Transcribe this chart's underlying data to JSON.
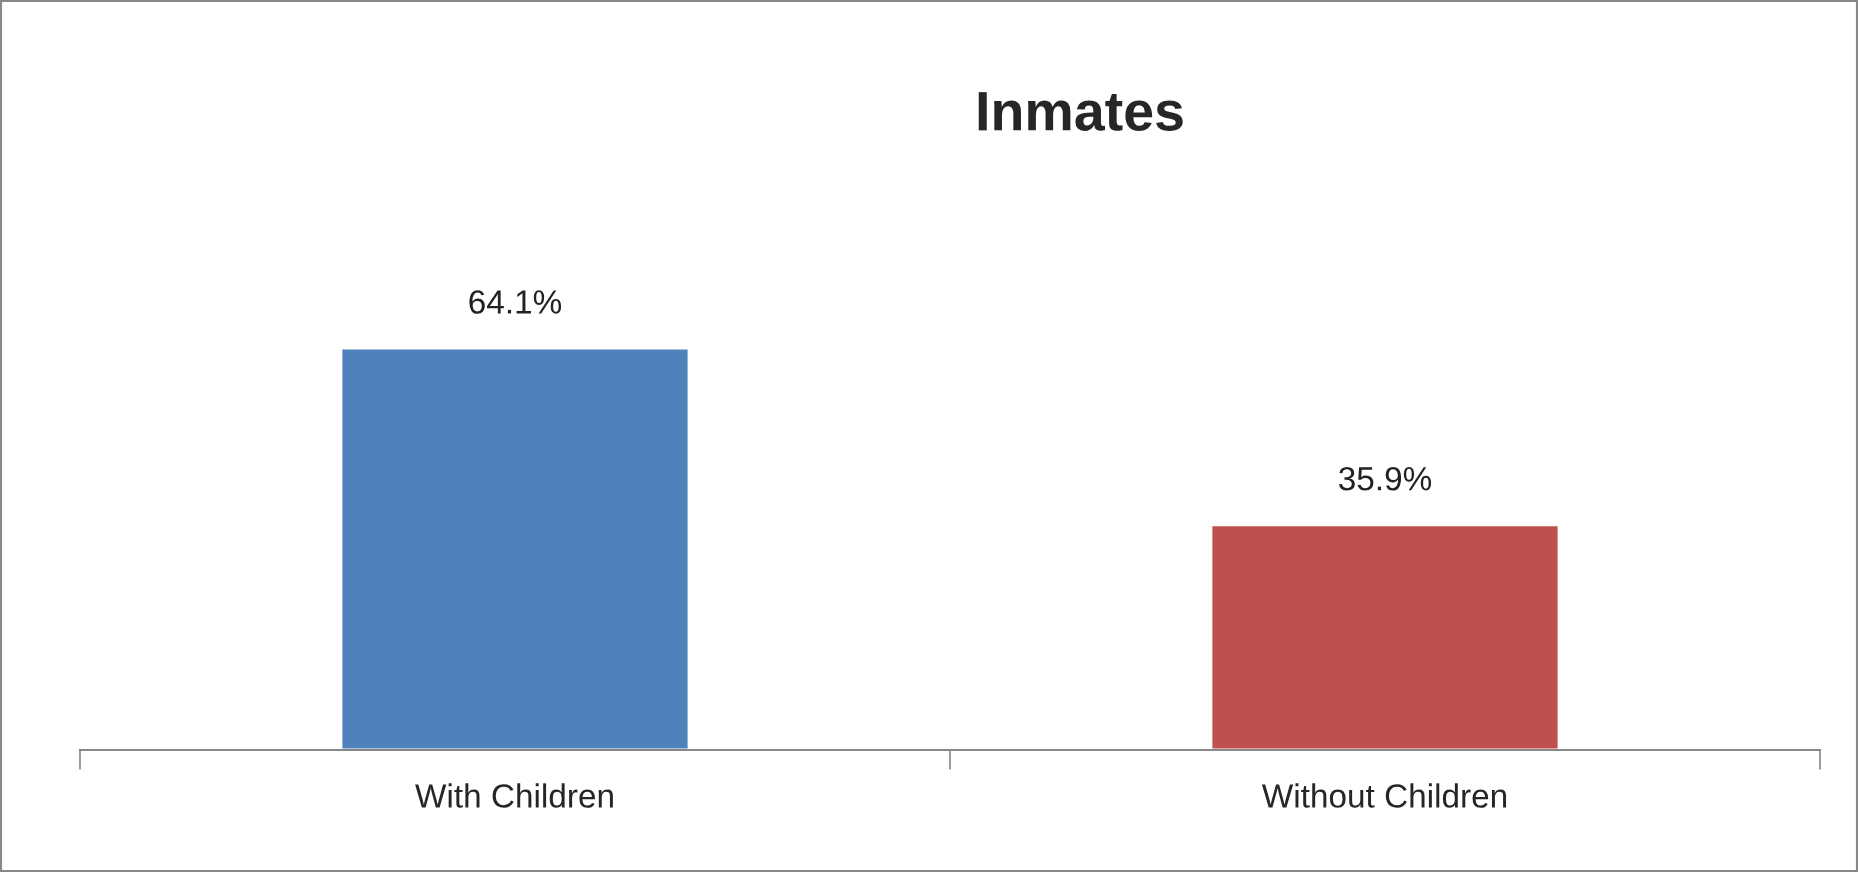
{
  "chart_data": {
    "type": "bar",
    "title": "Inmates",
    "categories": [
      "With Children",
      "Without Children"
    ],
    "values": [
      64.1,
      35.9
    ],
    "colors": [
      "#4f81bd",
      "#c0504d"
    ],
    "value_labels": [
      "64.1%",
      "35.9%"
    ],
    "grid": false,
    "legend": false
  }
}
